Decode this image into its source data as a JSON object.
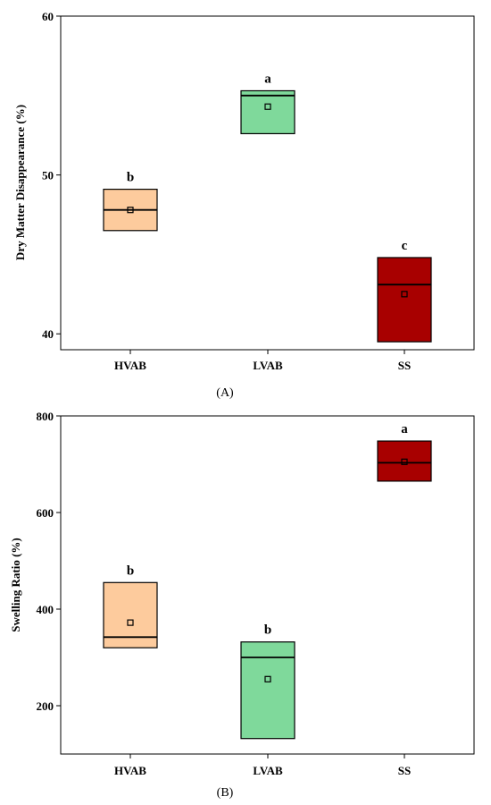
{
  "chart_data": [
    {
      "type": "box",
      "panel_label": "(A)",
      "ylabel": "Dry Matter Disappearance (%)",
      "ylim": [
        39,
        60
      ],
      "yticks": [
        40,
        50,
        60
      ],
      "categories": [
        "HVAB",
        "LVAB",
        "SS"
      ],
      "boxes": [
        {
          "category": "HVAB",
          "q1": 46.5,
          "median": 47.8,
          "q3": 49.1,
          "mean": 47.8,
          "letter": "b",
          "color": "#FDCB9D"
        },
        {
          "category": "LVAB",
          "q1": 52.6,
          "median": 55.0,
          "q3": 55.3,
          "mean": 54.3,
          "letter": "a",
          "color": "#7FD99B"
        },
        {
          "category": "SS",
          "q1": 39.5,
          "median": 43.1,
          "q3": 44.8,
          "mean": 42.5,
          "letter": "c",
          "color": "#A80000"
        }
      ]
    },
    {
      "type": "box",
      "panel_label": "(B)",
      "ylabel": "Swelling Ratio (%)",
      "ylim": [
        100,
        800
      ],
      "yticks": [
        200,
        400,
        600,
        800
      ],
      "categories": [
        "HVAB",
        "LVAB",
        "SS"
      ],
      "boxes": [
        {
          "category": "HVAB",
          "q1": 320,
          "median": 342,
          "q3": 455,
          "mean": 372,
          "letter": "b",
          "color": "#FDCB9D"
        },
        {
          "category": "LVAB",
          "q1": 132,
          "median": 300,
          "q3": 332,
          "mean": 255,
          "letter": "b",
          "color": "#7FD99B"
        },
        {
          "category": "SS",
          "q1": 665,
          "median": 703,
          "q3": 748,
          "mean": 705,
          "letter": "a",
          "color": "#A80000"
        }
      ]
    }
  ]
}
